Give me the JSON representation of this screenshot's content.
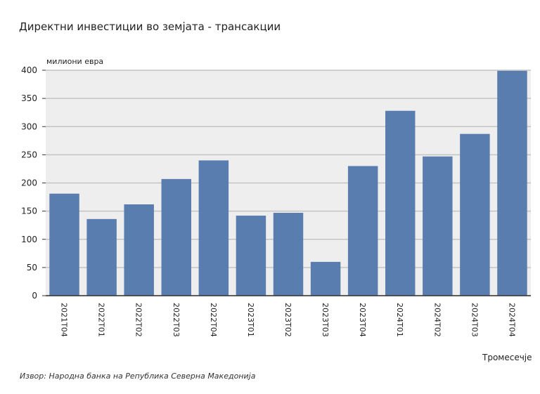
{
  "chart_data": {
    "type": "bar",
    "title": "Директни инвестиции во земјата - трансакции",
    "ylabel": "милиони евра",
    "xlabel": "Тромесечје",
    "source": "Извор: Народна банка на Република Северна Македонија",
    "categories": [
      "2021Т04",
      "2022Т01",
      "2022Т02",
      "2022Т03",
      "2022Т04",
      "2023Т01",
      "2023Т02",
      "2023Т03",
      "2023Т04",
      "2024Т01",
      "2024Т02",
      "2024Т03",
      "2024Т04"
    ],
    "values": [
      181,
      136,
      162,
      207,
      240,
      142,
      147,
      60,
      230,
      328,
      247,
      287,
      399
    ],
    "ylim": [
      0,
      400
    ],
    "yticks": [
      0,
      50,
      100,
      150,
      200,
      250,
      300,
      350,
      400
    ],
    "grid": true,
    "bar_color": "#5a7daf",
    "plot_bg": "#eeeeee"
  }
}
